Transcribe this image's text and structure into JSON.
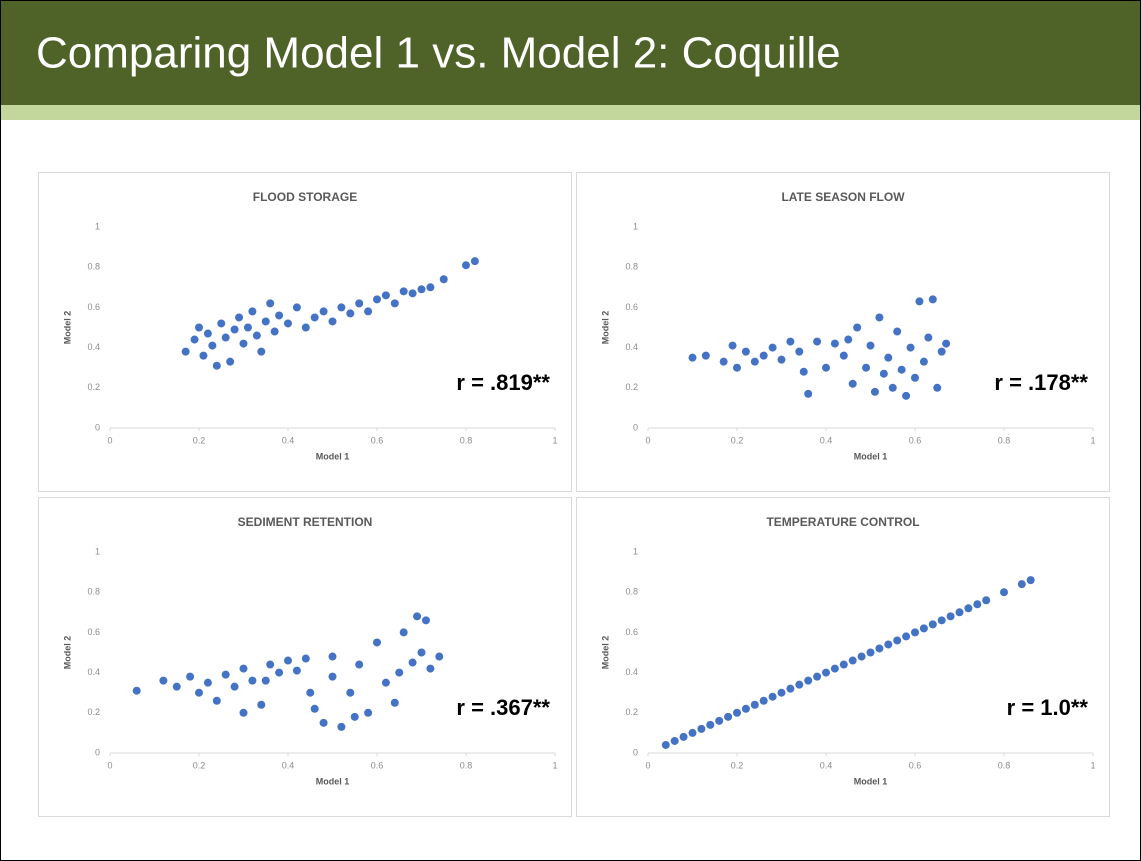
{
  "title": "Comparing Model 1 vs. Model 2:  Coquille",
  "chart_data": [
    {
      "type": "scatter",
      "title": "FLOOD STORAGE",
      "xlabel": "Model 1",
      "ylabel": "Model 2",
      "annotation": "r = .819**",
      "color": "#4472c4",
      "xlim": [
        0,
        1
      ],
      "ylim": [
        0,
        1
      ],
      "xticks": [
        0,
        0.2,
        0.4,
        0.6,
        0.8,
        1
      ],
      "yticks": [
        0,
        0.2,
        0.4,
        0.6,
        0.8,
        1
      ],
      "x": [
        0.17,
        0.19,
        0.2,
        0.21,
        0.22,
        0.23,
        0.24,
        0.25,
        0.26,
        0.27,
        0.28,
        0.29,
        0.3,
        0.31,
        0.32,
        0.33,
        0.34,
        0.35,
        0.36,
        0.37,
        0.38,
        0.4,
        0.42,
        0.44,
        0.46,
        0.48,
        0.5,
        0.52,
        0.54,
        0.56,
        0.58,
        0.6,
        0.62,
        0.64,
        0.66,
        0.68,
        0.7,
        0.72,
        0.75,
        0.8,
        0.82
      ],
      "values": [
        0.38,
        0.44,
        0.5,
        0.36,
        0.47,
        0.41,
        0.31,
        0.52,
        0.45,
        0.33,
        0.49,
        0.55,
        0.42,
        0.5,
        0.58,
        0.46,
        0.38,
        0.53,
        0.62,
        0.48,
        0.56,
        0.52,
        0.6,
        0.5,
        0.55,
        0.58,
        0.53,
        0.6,
        0.57,
        0.62,
        0.58,
        0.64,
        0.66,
        0.62,
        0.68,
        0.67,
        0.69,
        0.7,
        0.74,
        0.81,
        0.83
      ]
    },
    {
      "type": "scatter",
      "title": "LATE SEASON FLOW",
      "xlabel": "Model 1",
      "ylabel": "Model 2",
      "annotation": "r = .178**",
      "color": "#4472c4",
      "xlim": [
        0,
        1
      ],
      "ylim": [
        0,
        1
      ],
      "xticks": [
        0,
        0.2,
        0.4,
        0.6,
        0.8,
        1
      ],
      "yticks": [
        0,
        0.2,
        0.4,
        0.6,
        0.8,
        1
      ],
      "x": [
        0.1,
        0.13,
        0.17,
        0.19,
        0.2,
        0.22,
        0.24,
        0.26,
        0.28,
        0.3,
        0.32,
        0.34,
        0.36,
        0.38,
        0.4,
        0.42,
        0.44,
        0.46,
        0.47,
        0.49,
        0.5,
        0.51,
        0.52,
        0.53,
        0.54,
        0.55,
        0.56,
        0.57,
        0.58,
        0.59,
        0.6,
        0.61,
        0.62,
        0.63,
        0.64,
        0.65,
        0.66,
        0.67,
        0.35,
        0.45
      ],
      "values": [
        0.35,
        0.36,
        0.33,
        0.41,
        0.3,
        0.38,
        0.33,
        0.36,
        0.4,
        0.34,
        0.43,
        0.38,
        0.17,
        0.43,
        0.3,
        0.42,
        0.36,
        0.22,
        0.5,
        0.3,
        0.41,
        0.18,
        0.55,
        0.27,
        0.35,
        0.2,
        0.48,
        0.29,
        0.16,
        0.4,
        0.25,
        0.63,
        0.33,
        0.45,
        0.64,
        0.2,
        0.38,
        0.42,
        0.28,
        0.44
      ]
    },
    {
      "type": "scatter",
      "title": "SEDIMENT RETENTION",
      "xlabel": "Model 1",
      "ylabel": "Model 2",
      "annotation": "r = .367**",
      "color": "#4472c4",
      "xlim": [
        0,
        1
      ],
      "ylim": [
        0,
        1
      ],
      "xticks": [
        0,
        0.2,
        0.4,
        0.6,
        0.8,
        1
      ],
      "yticks": [
        0,
        0.2,
        0.4,
        0.6,
        0.8,
        1
      ],
      "x": [
        0.06,
        0.12,
        0.15,
        0.18,
        0.2,
        0.22,
        0.24,
        0.26,
        0.28,
        0.3,
        0.32,
        0.34,
        0.36,
        0.38,
        0.4,
        0.42,
        0.44,
        0.46,
        0.48,
        0.5,
        0.52,
        0.54,
        0.56,
        0.58,
        0.6,
        0.62,
        0.64,
        0.66,
        0.68,
        0.69,
        0.7,
        0.71,
        0.72,
        0.74,
        0.35,
        0.45,
        0.55,
        0.65,
        0.3,
        0.5
      ],
      "values": [
        0.31,
        0.36,
        0.33,
        0.38,
        0.3,
        0.35,
        0.26,
        0.39,
        0.33,
        0.42,
        0.36,
        0.24,
        0.44,
        0.4,
        0.46,
        0.41,
        0.47,
        0.22,
        0.15,
        0.38,
        0.13,
        0.3,
        0.44,
        0.2,
        0.55,
        0.35,
        0.25,
        0.6,
        0.45,
        0.68,
        0.5,
        0.66,
        0.42,
        0.48,
        0.36,
        0.3,
        0.18,
        0.4,
        0.2,
        0.48
      ]
    },
    {
      "type": "scatter",
      "title": "TEMPERATURE CONTROL",
      "xlabel": "Model 1",
      "ylabel": "Model 2",
      "annotation": "r = 1.0**",
      "color": "#4472c4",
      "xlim": [
        0,
        1
      ],
      "ylim": [
        0,
        1
      ],
      "xticks": [
        0,
        0.2,
        0.4,
        0.6,
        0.8,
        1
      ],
      "yticks": [
        0,
        0.2,
        0.4,
        0.6,
        0.8,
        1
      ],
      "x": [
        0.04,
        0.06,
        0.08,
        0.1,
        0.12,
        0.14,
        0.16,
        0.18,
        0.2,
        0.22,
        0.24,
        0.26,
        0.28,
        0.3,
        0.32,
        0.34,
        0.36,
        0.38,
        0.4,
        0.42,
        0.44,
        0.46,
        0.48,
        0.5,
        0.52,
        0.54,
        0.56,
        0.58,
        0.6,
        0.62,
        0.64,
        0.66,
        0.68,
        0.7,
        0.72,
        0.74,
        0.76,
        0.8,
        0.84,
        0.86
      ],
      "values": [
        0.04,
        0.06,
        0.08,
        0.1,
        0.12,
        0.14,
        0.16,
        0.18,
        0.2,
        0.22,
        0.24,
        0.26,
        0.28,
        0.3,
        0.32,
        0.34,
        0.36,
        0.38,
        0.4,
        0.42,
        0.44,
        0.46,
        0.48,
        0.5,
        0.52,
        0.54,
        0.56,
        0.58,
        0.6,
        0.62,
        0.64,
        0.66,
        0.68,
        0.7,
        0.72,
        0.74,
        0.76,
        0.8,
        0.84,
        0.86
      ]
    }
  ]
}
